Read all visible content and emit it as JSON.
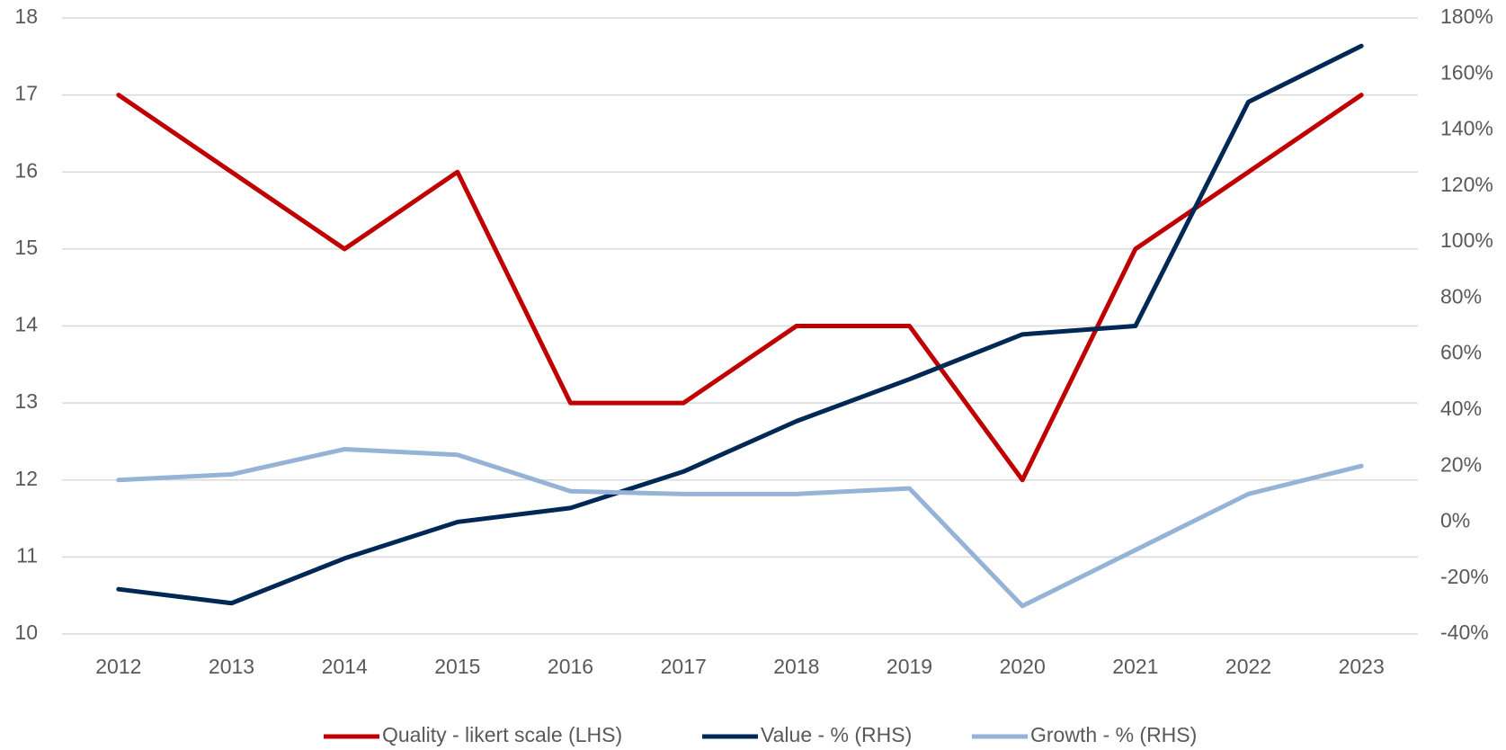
{
  "chart_data": {
    "type": "line",
    "categories": [
      "2012",
      "2013",
      "2014",
      "2015",
      "2016",
      "2017",
      "2018",
      "2019",
      "2020",
      "2021",
      "2022",
      "2023"
    ],
    "series": [
      {
        "name": "Quality - likert scale (LHS)",
        "color": "#c00000",
        "values": [
          17,
          16,
          15,
          16,
          13,
          13,
          14,
          14,
          12,
          15,
          16,
          17
        ]
      },
      {
        "name": "Value - % (RHS)",
        "color": "#002855",
        "axis": "y2",
        "values": [
          -24,
          -29,
          -13,
          0,
          5,
          18,
          36,
          51,
          67,
          70,
          150,
          170
        ]
      },
      {
        "name": "Growth - % (RHS)",
        "color": "#95b3d7",
        "axis": "y2",
        "values": [
          15,
          17,
          26,
          24,
          11,
          10,
          10,
          12,
          -30,
          -10,
          10,
          20
        ]
      }
    ],
    "ylim": [
      10,
      18
    ],
    "yticks": [
      10,
      11,
      12,
      13,
      14,
      15,
      16,
      17,
      18
    ],
    "y2lim": [
      -40,
      180
    ],
    "y2ticks": [
      {
        "value": -40,
        "label": "-40%"
      },
      {
        "value": -20,
        "label": "-20%"
      },
      {
        "value": 0,
        "label": "0%"
      },
      {
        "value": 20,
        "label": "20%"
      },
      {
        "value": 40,
        "label": "40%"
      },
      {
        "value": 60,
        "label": "60%"
      },
      {
        "value": 80,
        "label": "80%"
      },
      {
        "value": 100,
        "label": "100%"
      },
      {
        "value": 120,
        "label": "120%"
      },
      {
        "value": 140,
        "label": "140%"
      },
      {
        "value": 160,
        "label": "160%"
      },
      {
        "value": 180,
        "label": "180%"
      }
    ],
    "grid": true,
    "legend": "bottom"
  }
}
